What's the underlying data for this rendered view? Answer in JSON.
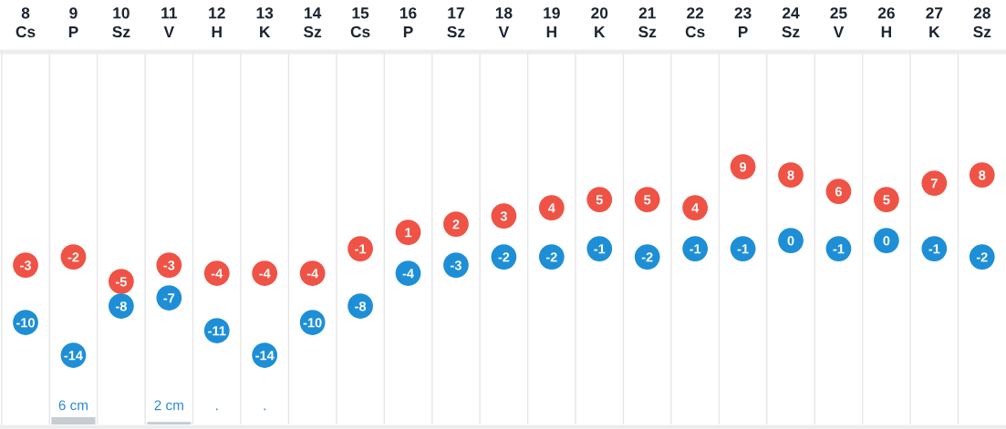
{
  "chart_data": [
    {
      "type": "scatter",
      "categories": [
        "8\nCs",
        "9\nP",
        "10\nSz",
        "11\nV",
        "12\nH",
        "13\nK",
        "14\nSz",
        "15\nCs",
        "16\nP",
        "17\nSz",
        "18\nV",
        "19\nH",
        "20\nK",
        "21\nSz",
        "22\nCs",
        "23\nP",
        "24\nSz",
        "25\nV",
        "26\nH",
        "27\nK",
        "28\nSz"
      ],
      "series": [
        {
          "color": "#ef5345",
          "values": [
            -3,
            -2,
            -5,
            -3,
            -4,
            -4,
            -4,
            -1,
            1,
            2,
            3,
            4,
            5,
            5,
            4,
            9,
            8,
            6,
            5,
            7,
            8
          ]
        },
        {
          "color": "#1e8fd6",
          "values": [
            -10,
            -14,
            -8,
            -7,
            -11,
            -14,
            -10,
            -8,
            -4,
            -3,
            -2,
            -2,
            -1,
            -2,
            -1,
            -1,
            0,
            -1,
            0,
            -1,
            -2
          ]
        }
      ],
      "data_labels": true,
      "marker": "circle",
      "grid": "x",
      "tick_labels": "x"
    },
    {
      "type": "bar",
      "categories": [
        null,
        null,
        null,
        null,
        null,
        null,
        null,
        null,
        null,
        null,
        null,
        null,
        null,
        null,
        null,
        null,
        null,
        null,
        null,
        null,
        null
      ],
      "values": [
        null,
        6,
        null,
        2,
        null,
        null,
        null,
        null,
        null,
        null,
        null,
        null,
        null,
        null,
        null,
        null,
        null,
        null,
        null,
        null,
        null
      ],
      "value_labels": [
        null,
        "6 cm",
        null,
        "2 cm",
        ".",
        ".",
        null,
        null,
        null,
        null,
        null,
        null,
        null,
        null,
        null,
        null,
        null,
        null,
        null,
        null,
        null
      ],
      "color": "#c5cdd2",
      "grid": "x",
      "tick_labels": false
    }
  ]
}
